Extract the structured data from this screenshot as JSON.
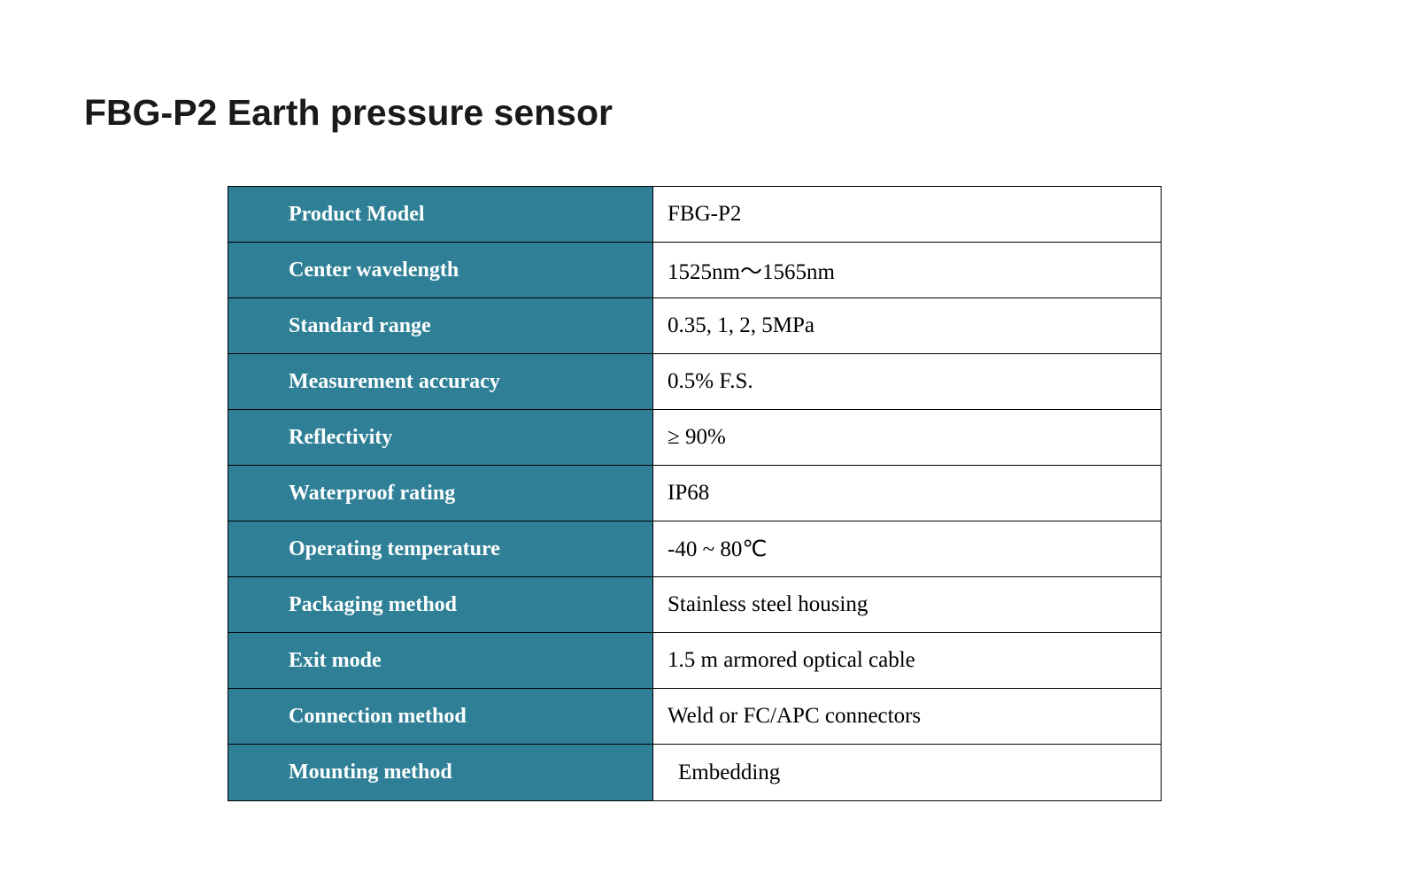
{
  "title": "FBG-P2 Earth pressure sensor",
  "colors": {
    "header-teal": "#2F8096",
    "border": "#000000",
    "label-text": "#ffffff",
    "value-text": "#000000"
  },
  "table": {
    "rows": [
      {
        "label": "Product Model",
        "value": "FBG-P2"
      },
      {
        "label": "Center wavelength",
        "value": "1525nm～1565nm"
      },
      {
        "label": "Standard range",
        "value": "0.35, 1, 2, 5MPa"
      },
      {
        "label": "Measurement accuracy",
        "value": "0.5% F.S."
      },
      {
        "label": "Reflectivity",
        "value": "≥ 90%"
      },
      {
        "label": "Waterproof rating",
        "value": "IP68"
      },
      {
        "label": "Operating temperature",
        "value": "-40 ~ 80℃"
      },
      {
        "label": "Packaging method",
        "value": "Stainless steel housing"
      },
      {
        "label": "Exit mode",
        "value": "1.5 m armored optical cable"
      },
      {
        "label": "Connection method",
        "value": "Weld or FC/APC connectors"
      },
      {
        "label": "Mounting method",
        "value": "Embedding"
      }
    ]
  }
}
